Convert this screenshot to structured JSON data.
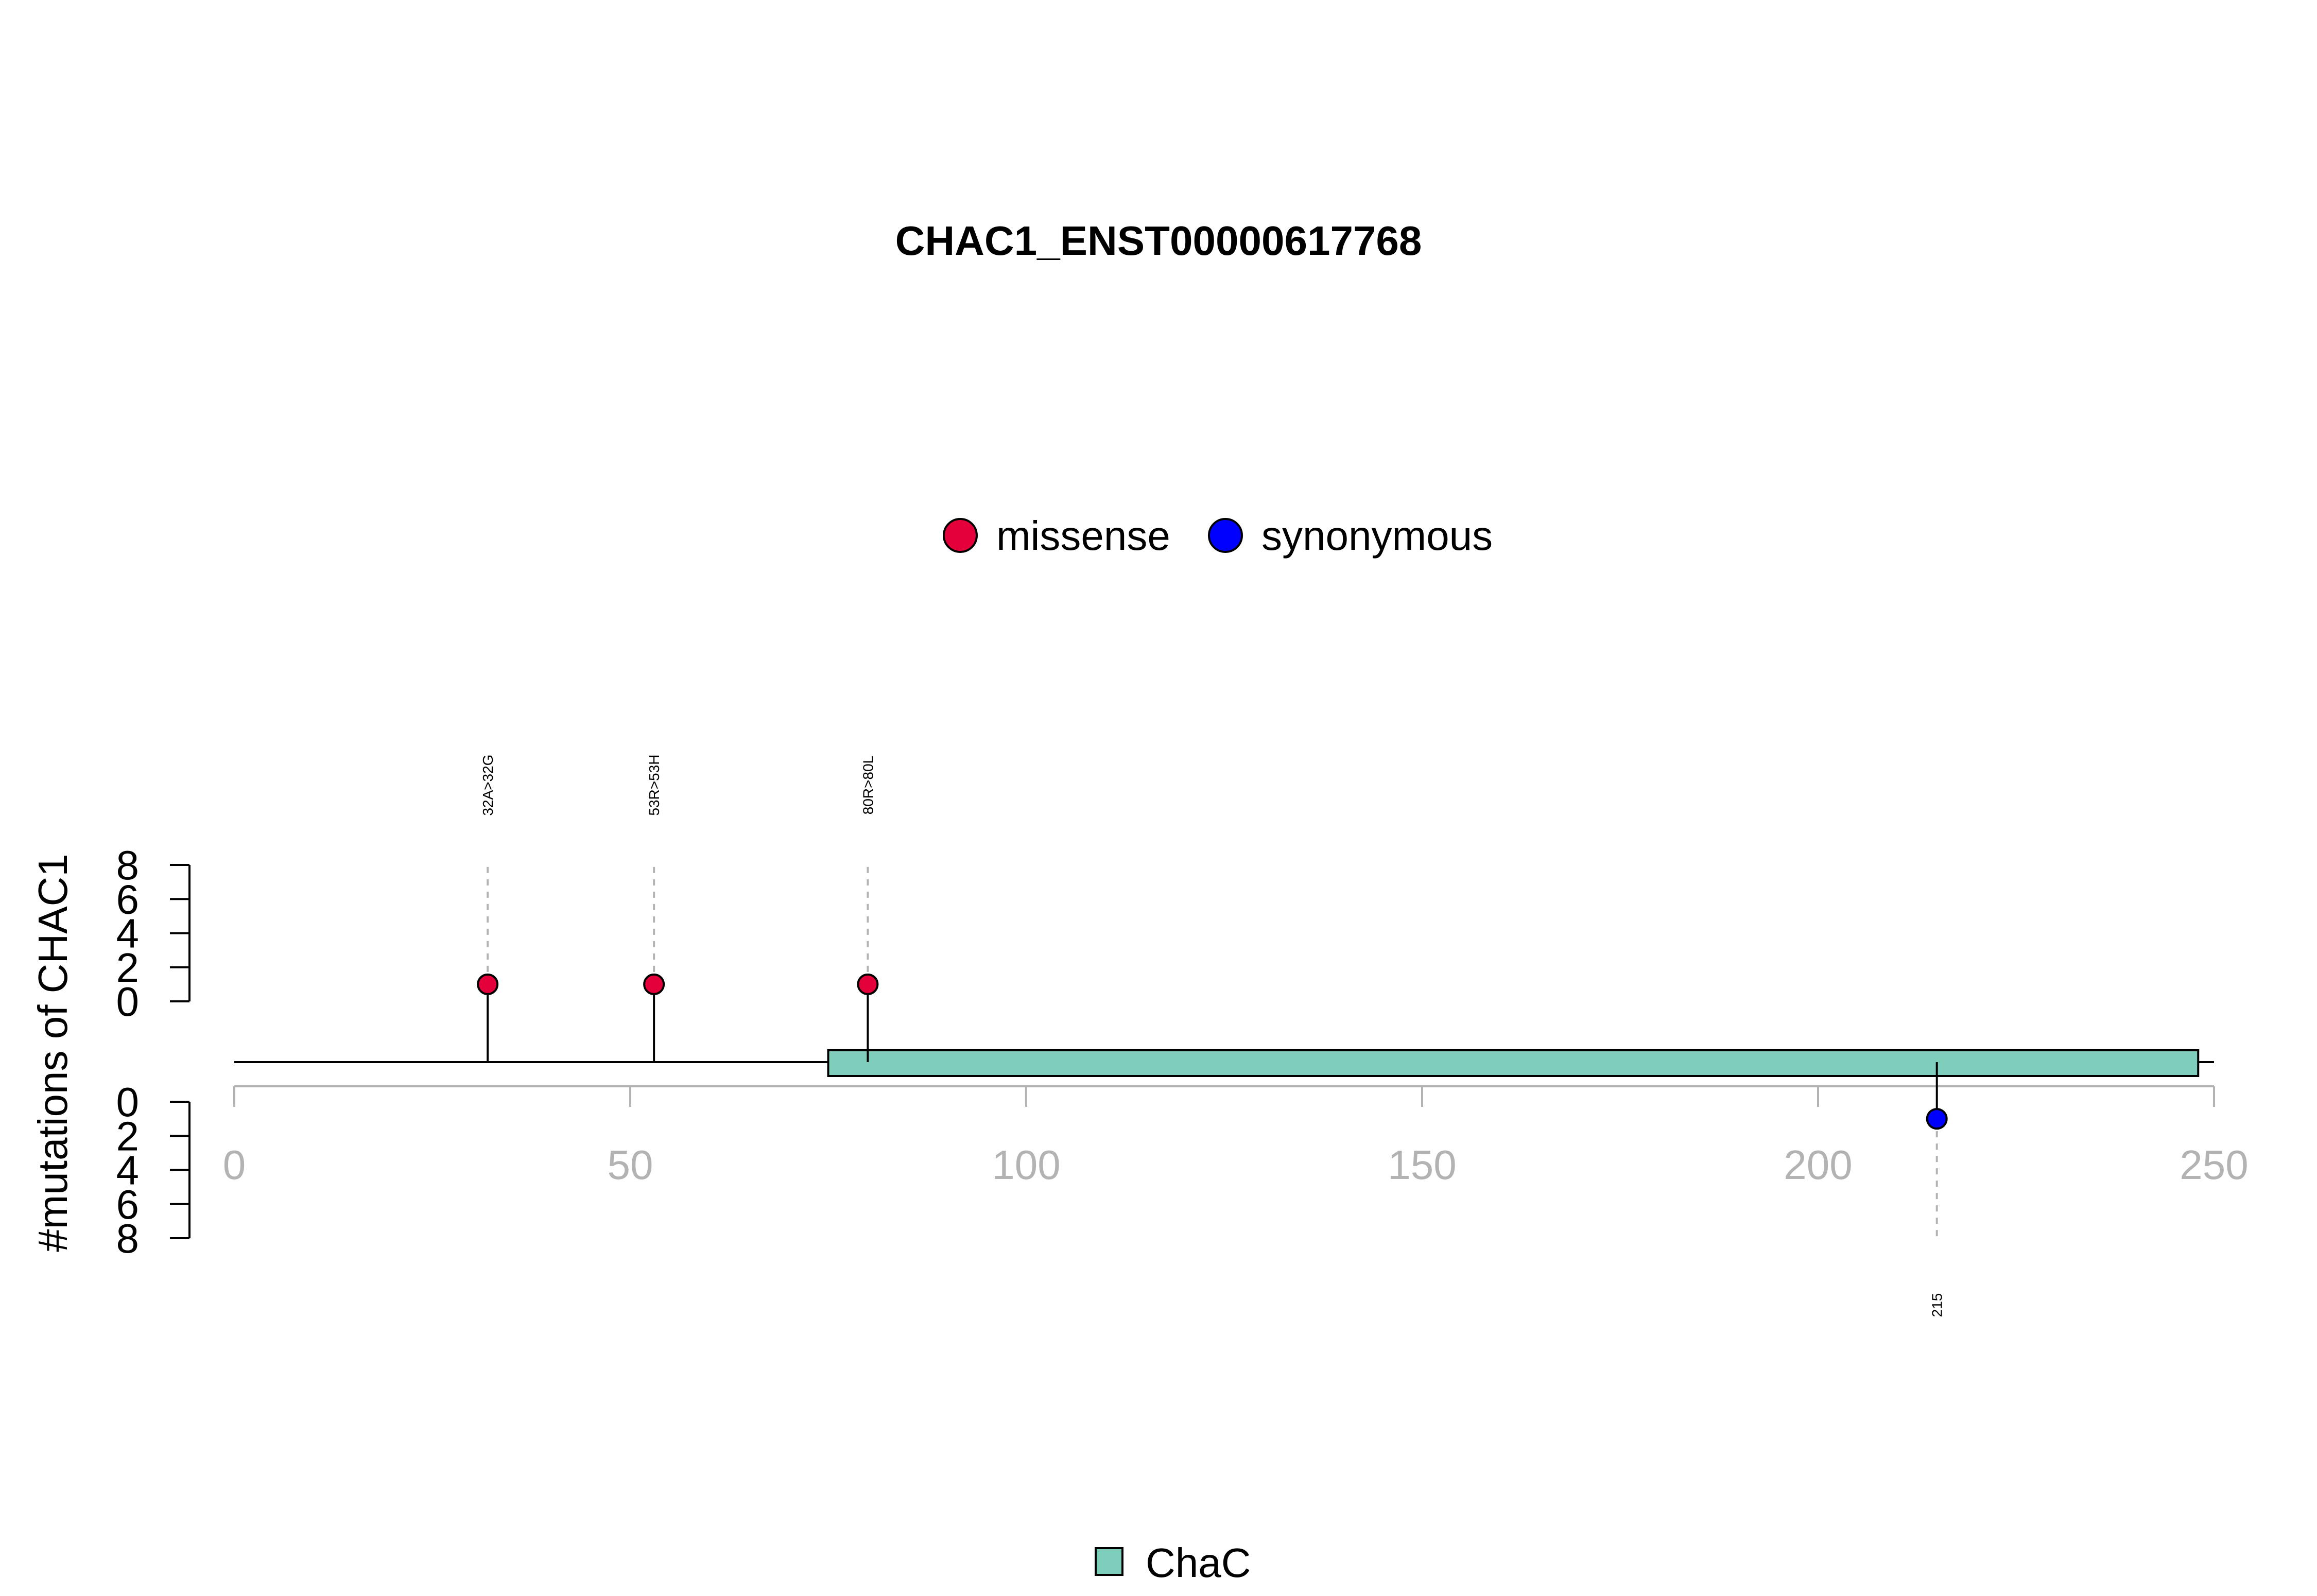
{
  "chart_data": {
    "type": "lollipop",
    "title": "CHAC1_ENST00000617768",
    "ylabel": "#mutations of CHAC1",
    "protein_length": 248,
    "xlim": [
      0,
      250
    ],
    "x_ticks": [
      "0",
      "50",
      "100",
      "150",
      "200",
      "250"
    ],
    "x_tick_values": [
      0,
      50,
      100,
      150,
      200,
      250
    ],
    "upper_axis": {
      "range": [
        0,
        8
      ],
      "ticks": [
        "0",
        "2",
        "4",
        "6",
        "8"
      ]
    },
    "lower_axis": {
      "range": [
        0,
        8
      ],
      "ticks": [
        "0",
        "2",
        "4",
        "6",
        "8"
      ]
    },
    "legend": [
      {
        "label": "missense",
        "color": "#e4003a"
      },
      {
        "label": "synonymous",
        "color": "#0000ff"
      }
    ],
    "mutations": [
      {
        "position": 32,
        "count": 1,
        "label": "32A>32G",
        "type": "missense",
        "track": "top"
      },
      {
        "position": 53,
        "count": 1,
        "label": "53R>53H",
        "type": "missense",
        "track": "top"
      },
      {
        "position": 80,
        "count": 1,
        "label": "80R>80L",
        "type": "missense",
        "track": "top"
      },
      {
        "position": 215,
        "count": 1,
        "label": "215",
        "type": "synonymous",
        "track": "bottom"
      }
    ],
    "domains": [
      {
        "name": "ChaC",
        "start": 75,
        "end": 248,
        "color": "#7fcdbb"
      }
    ],
    "domain_legend": [
      {
        "label": "ChaC",
        "color": "#7fcdbb"
      }
    ]
  }
}
